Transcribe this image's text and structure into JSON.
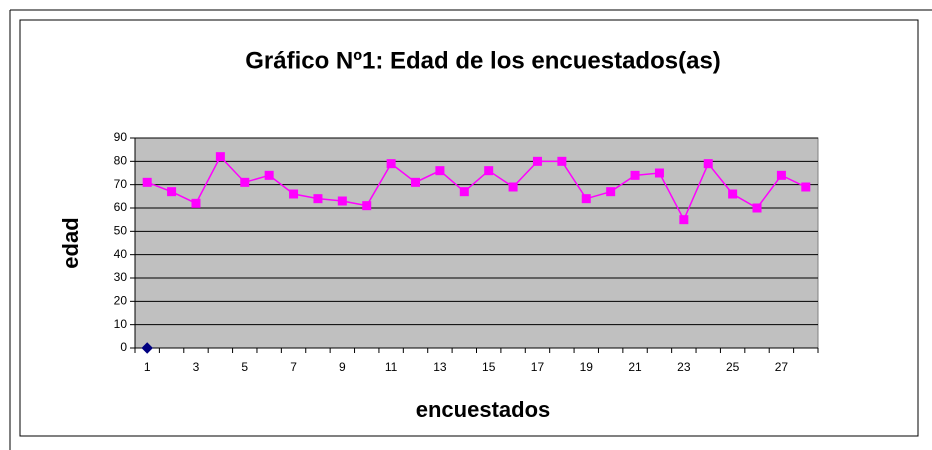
{
  "chart_data": {
    "type": "line",
    "title": "Gráfico Nº1: Edad de los encuestados(as)",
    "x_label": "encuestados",
    "y_label": "edad",
    "categories": [
      1,
      null,
      3,
      null,
      5,
      null,
      7,
      null,
      9,
      null,
      11,
      null,
      13,
      null,
      15,
      null,
      17,
      null,
      19,
      null,
      21,
      null,
      23,
      null,
      25,
      null,
      27,
      null
    ],
    "series": [
      {
        "color": "#000080",
        "marker": "diamond",
        "values": [
          0,
          null,
          null,
          null,
          null,
          null,
          null,
          null,
          null,
          null,
          null,
          null,
          null,
          null,
          null,
          null,
          null,
          null,
          null,
          null,
          null,
          null,
          null,
          null,
          null,
          null,
          null,
          null
        ]
      },
      {
        "color": "#ff00ff",
        "marker": "square",
        "values": [
          71,
          67,
          62,
          82,
          71,
          74,
          66,
          64,
          63,
          61,
          79,
          71,
          76,
          67,
          76,
          69,
          80,
          80,
          64,
          67,
          74,
          75,
          55,
          79,
          66,
          60,
          74,
          69
        ]
      }
    ],
    "ylim": [
      0,
      90
    ],
    "yticks": [
      0,
      10,
      20,
      30,
      40,
      50,
      60,
      70,
      80,
      90
    ],
    "grid": true,
    "plot_background": "#c0c0c0"
  }
}
